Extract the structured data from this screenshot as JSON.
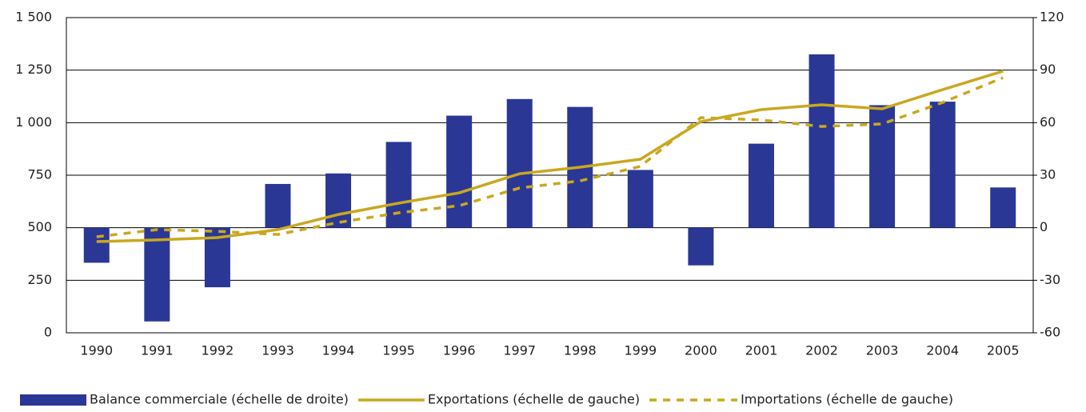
{
  "chart_data": {
    "type": "bar-line",
    "categories": [
      "1990",
      "1991",
      "1992",
      "1993",
      "1994",
      "1995",
      "1996",
      "1997",
      "1998",
      "1999",
      "2000",
      "2001",
      "2002",
      "2003",
      "2004",
      "2005"
    ],
    "series": [
      {
        "name": "Balance commerciale (échelle de droite)",
        "type": "bar",
        "axis": "y2",
        "color": "#2b3794",
        "values": [
          -20,
          -53.5,
          -34,
          25,
          31,
          49,
          64,
          73.5,
          69,
          33,
          -21.5,
          48,
          99,
          70,
          72,
          23
        ]
      },
      {
        "name": "Exportations (échelle de gauche)",
        "type": "line",
        "color": "#c9a820",
        "values": [
          434,
          442,
          453,
          491,
          563,
          617,
          666,
          757,
          788,
          826,
          1005,
          1062,
          1085,
          1066,
          1157,
          1245
        ]
      },
      {
        "name": "Importations (échelle de gauche)",
        "type": "line",
        "dashed": true,
        "color": "#c9a820",
        "values": [
          457,
          491,
          483,
          468,
          525,
          571,
          605,
          689,
          723,
          792,
          1024,
          1013,
          982,
          994,
          1096,
          1214
        ]
      }
    ],
    "ylim": [
      0,
      1500
    ],
    "yticks": [
      0,
      250,
      500,
      750,
      {
        "value": 1000,
        "label": "1 000"
      },
      {
        "value": 1250,
        "label": "1 250"
      },
      {
        "value": 1500,
        "label": "1 500"
      }
    ],
    "y2lim": [
      -60,
      120
    ],
    "y2ticks": [
      -60,
      -30,
      0,
      30,
      60,
      90,
      120
    ],
    "grid": true,
    "legend": "bottom"
  }
}
